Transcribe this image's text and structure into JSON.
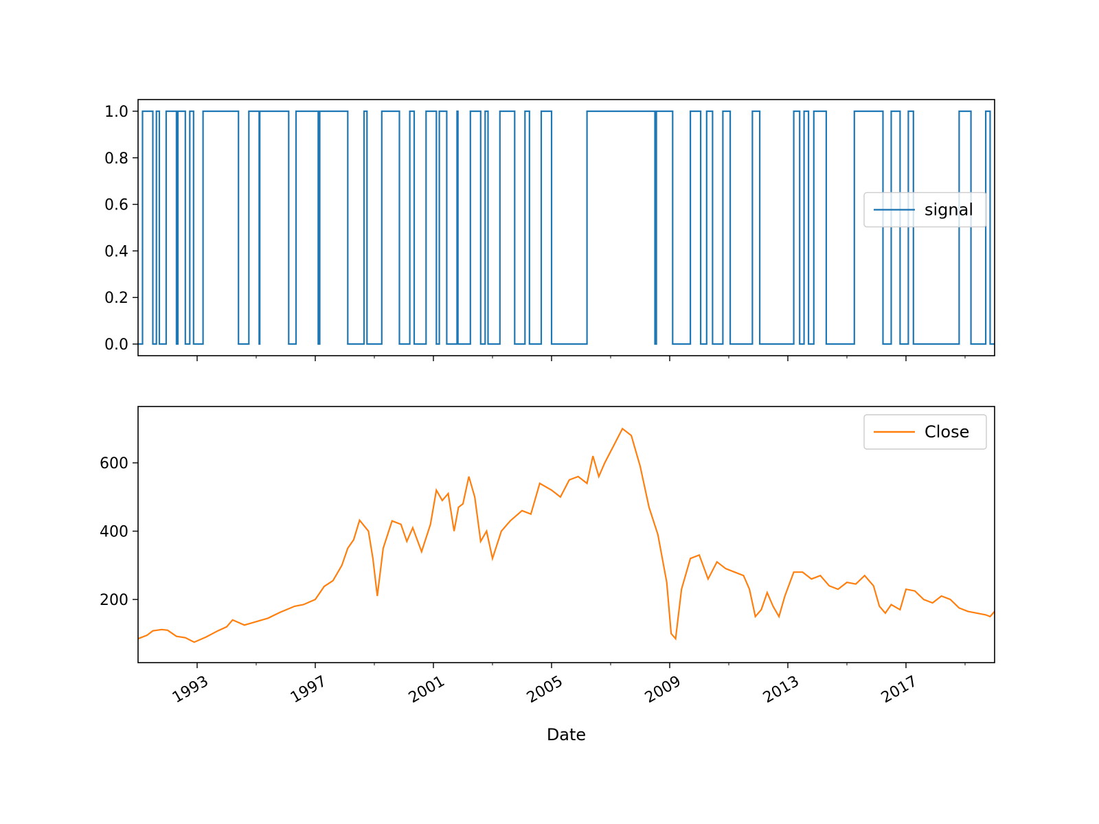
{
  "chart_data": [
    {
      "type": "line",
      "step": true,
      "x_axis": {
        "label": "",
        "range": [
          1991.0,
          2020.0
        ],
        "tick_labels": [
          "1993",
          "1997",
          "2001",
          "2005",
          "2009",
          "2013",
          "2017"
        ],
        "tick_values": [
          1993,
          1997,
          2001,
          2005,
          2009,
          2013,
          2017
        ],
        "tick_labels_visible": false
      },
      "y_axis": {
        "label": "",
        "range": [
          -0.05,
          1.05
        ],
        "ticks": [
          0.0,
          0.2,
          0.4,
          0.6,
          0.8,
          1.0
        ],
        "tick_labels": [
          "0.0",
          "0.2",
          "0.4",
          "0.6",
          "0.8",
          "1.0"
        ]
      },
      "legend": {
        "position": "center-right",
        "entries": [
          "signal"
        ]
      },
      "grid": false,
      "series": [
        {
          "name": "signal",
          "color": "#1f77b4",
          "x": [
            1991.0,
            1991.15,
            1991.5,
            1991.62,
            1991.72,
            1991.95,
            1992.3,
            1992.35,
            1992.6,
            1992.75,
            1992.88,
            1993.2,
            1994.4,
            1994.75,
            1995.1,
            1995.12,
            1996.1,
            1996.35,
            1997.1,
            1997.15,
            1998.1,
            1998.65,
            1998.75,
            1999.25,
            1999.85,
            2000.2,
            2000.35,
            2000.75,
            2001.1,
            2001.2,
            2001.45,
            2001.8,
            2001.83,
            2002.25,
            2002.6,
            2002.75,
            2002.85,
            2003.25,
            2003.75,
            2004.1,
            2004.25,
            2004.65,
            2005.0,
            2006.2,
            2008.5,
            2008.55,
            2009.1,
            2009.7,
            2010.05,
            2010.25,
            2010.45,
            2010.8,
            2011.05,
            2011.8,
            2012.05,
            2013.2,
            2013.4,
            2013.55,
            2013.7,
            2013.88,
            2014.3,
            2015.25,
            2016.22,
            2016.5,
            2016.8,
            2017.08,
            2017.25,
            2018.8,
            2019.2,
            2019.7,
            2019.85,
            2020.0
          ],
          "values": [
            0,
            1,
            0,
            1,
            0,
            1,
            0,
            1,
            0,
            1,
            0,
            1,
            0,
            1,
            0,
            1,
            0,
            1,
            0,
            1,
            0,
            1,
            0,
            1,
            0,
            1,
            0,
            1,
            0,
            1,
            0,
            1,
            0,
            1,
            0,
            1,
            0,
            1,
            0,
            1,
            0,
            1,
            0,
            1,
            0,
            1,
            0,
            1,
            0,
            1,
            0,
            1,
            0,
            1,
            0,
            1,
            0,
            1,
            0,
            1,
            0,
            1,
            0,
            1,
            0,
            1,
            0,
            1,
            0,
            1,
            0,
            0
          ]
        }
      ]
    },
    {
      "type": "line",
      "x_axis": {
        "label": "Date",
        "range": [
          1991.0,
          2020.0
        ],
        "tick_labels": [
          "1993",
          "1997",
          "2001",
          "2005",
          "2009",
          "2013",
          "2017"
        ],
        "tick_values": [
          1993,
          1997,
          2001,
          2005,
          2009,
          2013,
          2017
        ],
        "tick_labels_visible": true,
        "tick_label_rotation_deg": 30
      },
      "y_axis": {
        "label": "",
        "range": [
          15,
          765
        ],
        "ticks": [
          200,
          400,
          600
        ],
        "tick_labels": [
          "200",
          "400",
          "600"
        ]
      },
      "legend": {
        "position": "top-right",
        "entries": [
          "Close"
        ]
      },
      "grid": false,
      "series": [
        {
          "name": "Close",
          "color": "#ff7f0e",
          "x": [
            1991.0,
            1991.3,
            1991.5,
            1991.8,
            1992.0,
            1992.3,
            1992.6,
            1992.9,
            1993.3,
            1993.7,
            1994.0,
            1994.2,
            1994.6,
            1995.0,
            1995.4,
            1995.8,
            1996.3,
            1996.6,
            1997.0,
            1997.3,
            1997.6,
            1997.9,
            1998.1,
            1998.3,
            1998.5,
            1998.8,
            1998.95,
            1999.1,
            1999.3,
            1999.6,
            1999.9,
            2000.1,
            2000.3,
            2000.6,
            2000.9,
            2001.1,
            2001.3,
            2001.5,
            2001.7,
            2001.85,
            2002.0,
            2002.2,
            2002.4,
            2002.6,
            2002.8,
            2003.0,
            2003.3,
            2003.6,
            2004.0,
            2004.3,
            2004.6,
            2005.0,
            2005.3,
            2005.6,
            2005.9,
            2006.2,
            2006.4,
            2006.6,
            2006.8,
            2007.1,
            2007.4,
            2007.7,
            2008.0,
            2008.3,
            2008.6,
            2008.9,
            2009.05,
            2009.2,
            2009.4,
            2009.7,
            2010.0,
            2010.3,
            2010.6,
            2010.9,
            2011.2,
            2011.5,
            2011.7,
            2011.9,
            2012.1,
            2012.3,
            2012.5,
            2012.7,
            2012.9,
            2013.2,
            2013.5,
            2013.8,
            2014.1,
            2014.4,
            2014.7,
            2015.0,
            2015.3,
            2015.6,
            2015.9,
            2016.1,
            2016.3,
            2016.5,
            2016.8,
            2017.0,
            2017.3,
            2017.6,
            2017.9,
            2018.2,
            2018.5,
            2018.8,
            2019.1,
            2019.4,
            2019.7,
            2019.85,
            2020.0
          ],
          "values": [
            85,
            95,
            108,
            112,
            110,
            92,
            88,
            75,
            90,
            108,
            120,
            140,
            125,
            135,
            145,
            162,
            180,
            185,
            200,
            238,
            255,
            300,
            350,
            375,
            432,
            400,
            320,
            210,
            350,
            430,
            420,
            370,
            410,
            340,
            420,
            520,
            490,
            510,
            400,
            470,
            480,
            560,
            500,
            370,
            400,
            320,
            400,
            430,
            460,
            450,
            540,
            520,
            500,
            550,
            560,
            540,
            620,
            560,
            600,
            650,
            700,
            680,
            590,
            470,
            390,
            250,
            100,
            85,
            230,
            320,
            330,
            260,
            310,
            290,
            280,
            270,
            230,
            150,
            170,
            220,
            180,
            150,
            210,
            280,
            280,
            260,
            270,
            240,
            230,
            250,
            245,
            270,
            240,
            180,
            160,
            185,
            170,
            230,
            225,
            200,
            190,
            210,
            200,
            175,
            165,
            160,
            155,
            150,
            165
          ]
        }
      ]
    }
  ]
}
